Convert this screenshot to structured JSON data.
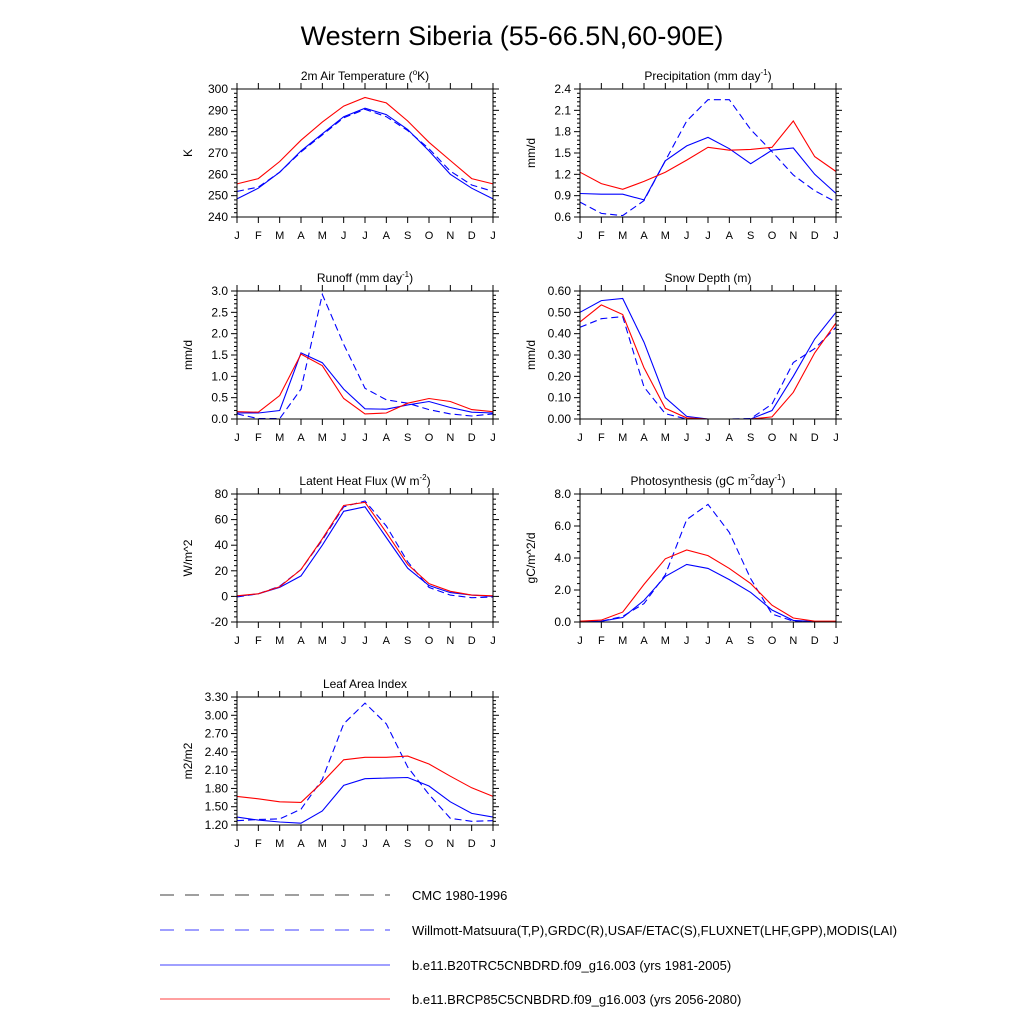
{
  "title": "Western Siberia (55-66.5N,60-90E)",
  "colors": {
    "model_hist": "#0000ff",
    "model_future": "#ff0000",
    "obs": "#0000ff",
    "cmc": "#000000"
  },
  "chart_data": [
    {
      "type": "line",
      "title_parts": [
        {
          "t": "2m Air Temperature ("
        },
        {
          "t": "o",
          "sup": true
        },
        {
          "t": "K)"
        }
      ],
      "ylabel": "K",
      "ylim": [
        240,
        300
      ],
      "yticks": [
        240,
        250,
        260,
        270,
        280,
        290,
        300
      ],
      "ytick_labels": [
        "240",
        "250",
        "260",
        "270",
        "280",
        "290",
        "300"
      ],
      "categories": [
        "J",
        "F",
        "M",
        "A",
        "M",
        "J",
        "J",
        "A",
        "S",
        "O",
        "N",
        "D",
        "J"
      ],
      "series": [
        {
          "key": "obs",
          "values": [
            252,
            254,
            261,
            270.5,
            278.5,
            286.5,
            290.5,
            287,
            280.5,
            272,
            261.5,
            255,
            252
          ]
        },
        {
          "key": "hist",
          "values": [
            248.5,
            253.5,
            261,
            271,
            279,
            287,
            291,
            288,
            281,
            271,
            260,
            253.5,
            248.5
          ]
        },
        {
          "key": "future",
          "values": [
            255.5,
            258,
            266,
            276,
            284.5,
            292,
            296,
            293.5,
            285,
            275,
            266.5,
            258,
            255.5
          ]
        }
      ]
    },
    {
      "type": "line",
      "title_parts": [
        {
          "t": "Precipitation (mm day"
        },
        {
          "t": "-1",
          "sup": true
        },
        {
          "t": ")"
        }
      ],
      "ylabel": "mm/d",
      "ylim": [
        0.6,
        2.4
      ],
      "yticks": [
        0.6,
        0.9,
        1.2,
        1.5,
        1.8,
        2.1,
        2.4
      ],
      "ytick_labels": [
        "0.6",
        "0.9",
        "1.2",
        "1.5",
        "1.8",
        "2.1",
        "2.4"
      ],
      "categories": [
        "J",
        "F",
        "M",
        "A",
        "M",
        "J",
        "J",
        "A",
        "S",
        "O",
        "N",
        "D",
        "J"
      ],
      "series": [
        {
          "key": "obs",
          "values": [
            0.81,
            0.65,
            0.62,
            0.83,
            1.39,
            1.95,
            2.25,
            2.25,
            1.83,
            1.52,
            1.19,
            0.97,
            0.81
          ]
        },
        {
          "key": "hist",
          "values": [
            0.93,
            0.92,
            0.92,
            0.84,
            1.39,
            1.6,
            1.72,
            1.56,
            1.35,
            1.54,
            1.57,
            1.2,
            0.93
          ]
        },
        {
          "key": "future",
          "values": [
            1.23,
            1.07,
            0.99,
            1.1,
            1.23,
            1.4,
            1.58,
            1.54,
            1.55,
            1.58,
            1.95,
            1.45,
            1.24
          ]
        }
      ]
    },
    {
      "type": "line",
      "title_parts": [
        {
          "t": "Runoff (mm day"
        },
        {
          "t": "-1",
          "sup": true
        },
        {
          "t": ")"
        }
      ],
      "ylabel": "mm/d",
      "ylim": [
        0,
        3
      ],
      "yticks": [
        0,
        0.5,
        1,
        1.5,
        2,
        2.5,
        3
      ],
      "ytick_labels": [
        "0.0",
        "0.5",
        "1.0",
        "1.5",
        "2.0",
        "2.5",
        "3.0"
      ],
      "categories": [
        "J",
        "F",
        "M",
        "A",
        "M",
        "J",
        "J",
        "A",
        "S",
        "O",
        "N",
        "D",
        "J"
      ],
      "series": [
        {
          "key": "obs",
          "values": [
            0.12,
            0.01,
            0.01,
            0.7,
            2.92,
            1.75,
            0.72,
            0.45,
            0.37,
            0.22,
            0.12,
            0.07,
            0.12
          ]
        },
        {
          "key": "hist",
          "values": [
            0.14,
            0.14,
            0.2,
            1.55,
            1.32,
            0.7,
            0.24,
            0.23,
            0.33,
            0.41,
            0.27,
            0.16,
            0.14
          ]
        },
        {
          "key": "future",
          "values": [
            0.17,
            0.16,
            0.55,
            1.52,
            1.25,
            0.48,
            0.12,
            0.14,
            0.37,
            0.48,
            0.41,
            0.22,
            0.17
          ]
        }
      ]
    },
    {
      "type": "line",
      "title_parts": [
        {
          "t": "Snow Depth (m)"
        }
      ],
      "ylabel": "mm/d",
      "ylim": [
        0,
        0.6
      ],
      "yticks": [
        0,
        0.1,
        0.2,
        0.3,
        0.4,
        0.5,
        0.6
      ],
      "ytick_labels": [
        "0.00",
        "0.10",
        "0.20",
        "0.30",
        "0.40",
        "0.50",
        "0.60"
      ],
      "categories": [
        "J",
        "F",
        "M",
        "A",
        "M",
        "J",
        "J",
        "A",
        "S",
        "O",
        "N",
        "D",
        "J"
      ],
      "series": [
        {
          "key": "cmc",
          "values": [
            0,
            0,
            0,
            0,
            0,
            0,
            0,
            0,
            0,
            0,
            0,
            0,
            0
          ]
        },
        {
          "key": "obs",
          "values": [
            0.43,
            0.47,
            0.48,
            0.15,
            0.025,
            0,
            0,
            0,
            0.002,
            0.07,
            0.265,
            0.33,
            0.43
          ]
        },
        {
          "key": "hist",
          "values": [
            0.5,
            0.555,
            0.565,
            0.36,
            0.1,
            0.012,
            0,
            0,
            0,
            0.04,
            0.2,
            0.375,
            0.5
          ]
        },
        {
          "key": "future",
          "values": [
            0.455,
            0.535,
            0.49,
            0.24,
            0.05,
            0.005,
            0,
            0,
            0,
            0.01,
            0.125,
            0.31,
            0.45
          ]
        }
      ]
    },
    {
      "type": "line",
      "title_parts": [
        {
          "t": "Latent Heat Flux (W m"
        },
        {
          "t": "-2",
          "sup": true
        },
        {
          "t": ")"
        }
      ],
      "ylabel": "W/m^2",
      "ylim": [
        -20,
        80
      ],
      "yticks": [
        -20,
        0,
        20,
        40,
        60,
        80
      ],
      "ytick_labels": [
        "-20",
        "0",
        "20",
        "40",
        "60",
        "80"
      ],
      "categories": [
        "J",
        "F",
        "M",
        "A",
        "M",
        "J",
        "J",
        "A",
        "S",
        "O",
        "N",
        "D",
        "J"
      ],
      "series": [
        {
          "key": "obs",
          "values": [
            -0.5,
            2,
            8,
            21,
            44,
            70,
            74.5,
            55,
            27,
            7,
            1,
            -1,
            -0.5
          ]
        },
        {
          "key": "hist",
          "values": [
            0,
            2,
            7,
            16,
            40,
            66.5,
            70,
            46,
            22,
            8.5,
            3,
            1,
            0
          ]
        },
        {
          "key": "future",
          "values": [
            0.5,
            2,
            7.5,
            21,
            45,
            71,
            73.5,
            50,
            25,
            10,
            4,
            1,
            0.5
          ]
        }
      ]
    },
    {
      "type": "line",
      "title_parts": [
        {
          "t": "Photosynthesis (gC m"
        },
        {
          "t": "-2",
          "sup": true
        },
        {
          "t": "day"
        },
        {
          "t": "-1",
          "sup": true
        },
        {
          "t": ")"
        }
      ],
      "ylabel": "gC/m^2/d",
      "ylim": [
        0,
        8
      ],
      "yticks": [
        0,
        2,
        4,
        6,
        8
      ],
      "ytick_labels": [
        "0.0",
        "2.0",
        "4.0",
        "6.0",
        "8.0"
      ],
      "categories": [
        "J",
        "F",
        "M",
        "A",
        "M",
        "J",
        "J",
        "A",
        "S",
        "O",
        "N",
        "D",
        "J"
      ],
      "series": [
        {
          "key": "obs",
          "values": [
            0.03,
            0.05,
            0.35,
            1.15,
            2.95,
            6.4,
            7.35,
            5.6,
            2.7,
            0.5,
            0.05,
            0.03,
            0.03
          ]
        },
        {
          "key": "hist",
          "values": [
            0.02,
            0.05,
            0.28,
            1.35,
            2.85,
            3.6,
            3.35,
            2.65,
            1.85,
            0.75,
            0.1,
            0.03,
            0.02
          ]
        },
        {
          "key": "future",
          "values": [
            0.05,
            0.12,
            0.62,
            2.35,
            3.95,
            4.5,
            4.15,
            3.35,
            2.4,
            1.05,
            0.25,
            0.05,
            0.05
          ]
        }
      ]
    },
    {
      "type": "line",
      "title_parts": [
        {
          "t": "Leaf Area Index"
        }
      ],
      "ylabel": "m2/m2",
      "ylim": [
        1.2,
        3.3
      ],
      "yticks": [
        1.2,
        1.5,
        1.8,
        2.1,
        2.4,
        2.7,
        3.0,
        3.3
      ],
      "ytick_labels": [
        "1.20",
        "1.50",
        "1.80",
        "2.10",
        "2.40",
        "2.70",
        "3.00",
        "3.30"
      ],
      "categories": [
        "J",
        "F",
        "M",
        "A",
        "M",
        "J",
        "J",
        "A",
        "S",
        "O",
        "N",
        "D",
        "J"
      ],
      "series": [
        {
          "key": "obs",
          "values": [
            1.27,
            1.29,
            1.3,
            1.46,
            1.95,
            2.86,
            3.2,
            2.86,
            2.15,
            1.7,
            1.31,
            1.26,
            1.27
          ]
        },
        {
          "key": "hist",
          "values": [
            1.33,
            1.28,
            1.25,
            1.23,
            1.43,
            1.85,
            1.96,
            1.97,
            1.98,
            1.84,
            1.58,
            1.39,
            1.33
          ]
        },
        {
          "key": "future",
          "values": [
            1.67,
            1.63,
            1.58,
            1.57,
            1.9,
            2.27,
            2.31,
            2.31,
            2.33,
            2.2,
            2.0,
            1.81,
            1.67
          ]
        }
      ]
    }
  ],
  "legend": [
    {
      "key": "cmc",
      "label": "CMC 1980-1996",
      "dashed": true
    },
    {
      "key": "obs",
      "label": "Willmott-Matsuura(T,P),GRDC(R),USAF/ETAC(S),FLUXNET(LHF,GPP),MODIS(LAI)",
      "dashed": true
    },
    {
      "key": "hist",
      "label": "b.e11.B20TRC5CNBDRD.f09_g16.003 (yrs 1981-2005)",
      "dashed": false
    },
    {
      "key": "future",
      "label": "b.e11.BRCP85C5CNBDRD.f09_g16.003 (yrs 2056-2080)",
      "dashed": false
    }
  ]
}
